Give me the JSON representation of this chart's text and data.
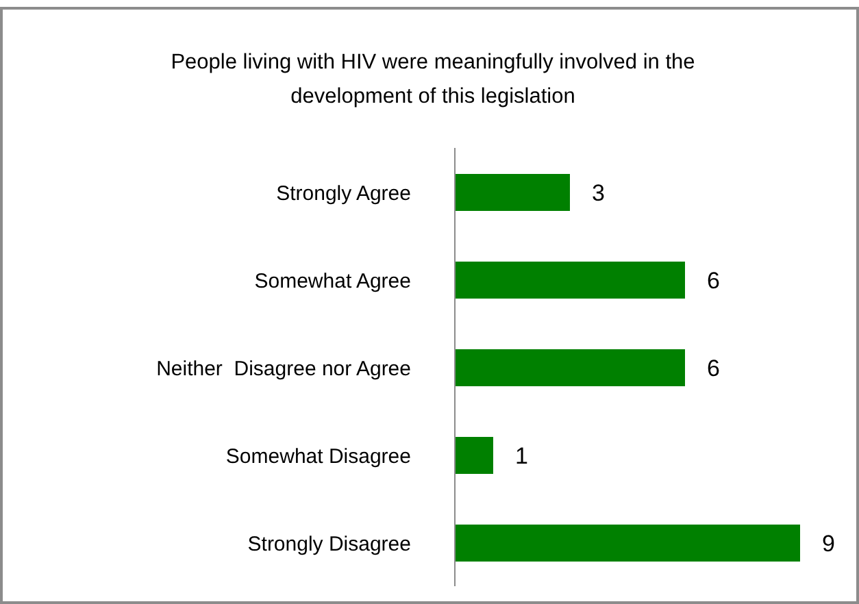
{
  "chart_data": {
    "type": "bar",
    "orientation": "horizontal",
    "title": "People living with HIV were meaningfully involved in the development of this legislation",
    "categories": [
      "Strongly Agree",
      "Somewhat Agree",
      "Neither  Disagree nor Agree",
      "Somewhat Disagree",
      "Strongly Disagree"
    ],
    "values": [
      3,
      6,
      6,
      1,
      9
    ],
    "color": "#008000",
    "data_labels": true
  }
}
